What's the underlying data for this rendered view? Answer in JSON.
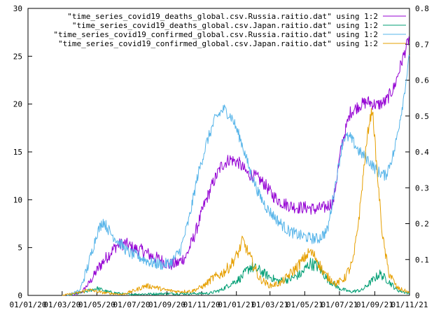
{
  "chart_data": {
    "type": "line",
    "title": "",
    "xlabel": "",
    "ylabel": "",
    "y2label": "",
    "grid": false,
    "legend_position": "top-right",
    "x_range": [
      "2020-01-01",
      "2021-11-01"
    ],
    "ylim": [
      0,
      30
    ],
    "y2lim": [
      0,
      0.8
    ],
    "x_ticks": [
      "01/01/20",
      "01/03/20",
      "01/05/20",
      "01/07/20",
      "01/09/20",
      "01/11/20",
      "01/01/21",
      "01/03/21",
      "01/05/21",
      "01/07/21",
      "01/09/21",
      "01/11/21"
    ],
    "y_ticks": [
      "0",
      "5",
      "10",
      "15",
      "20",
      "25",
      "30"
    ],
    "y2_ticks": [
      "0",
      "0.1",
      "0.2",
      "0.3",
      "0.4",
      "0.5",
      "0.6",
      "0.7",
      "0.8"
    ],
    "series": [
      {
        "name": "\"time_series_covid19_deaths_global.csv.Russia.raitio.dat\" using 1:2",
        "axis": "y2",
        "color": "#9400d3",
        "points": [
          [
            "2020-03-20",
            0
          ],
          [
            "2020-04-05",
            0.01
          ],
          [
            "2020-04-20",
            0.04
          ],
          [
            "2020-05-05",
            0.08
          ],
          [
            "2020-05-20",
            0.11
          ],
          [
            "2020-06-05",
            0.14
          ],
          [
            "2020-06-20",
            0.145
          ],
          [
            "2020-07-05",
            0.13
          ],
          [
            "2020-07-20",
            0.125
          ],
          [
            "2020-08-05",
            0.11
          ],
          [
            "2020-08-20",
            0.1
          ],
          [
            "2020-09-05",
            0.085
          ],
          [
            "2020-09-20",
            0.09
          ],
          [
            "2020-10-05",
            0.11
          ],
          [
            "2020-10-20",
            0.17
          ],
          [
            "2020-11-05",
            0.25
          ],
          [
            "2020-11-20",
            0.31
          ],
          [
            "2020-12-05",
            0.36
          ],
          [
            "2020-12-20",
            0.38
          ],
          [
            "2021-01-05",
            0.37
          ],
          [
            "2021-01-20",
            0.34
          ],
          [
            "2021-02-05",
            0.33
          ],
          [
            "2021-02-20",
            0.31
          ],
          [
            "2021-03-05",
            0.28
          ],
          [
            "2021-03-20",
            0.26
          ],
          [
            "2021-04-05",
            0.25
          ],
          [
            "2021-04-20",
            0.245
          ],
          [
            "2021-05-05",
            0.245
          ],
          [
            "2021-05-20",
            0.24
          ],
          [
            "2021-06-05",
            0.245
          ],
          [
            "2021-06-20",
            0.26
          ],
          [
            "2021-07-05",
            0.42
          ],
          [
            "2021-07-20",
            0.51
          ],
          [
            "2021-08-05",
            0.53
          ],
          [
            "2021-08-20",
            0.54
          ],
          [
            "2021-09-05",
            0.53
          ],
          [
            "2021-09-20",
            0.54
          ],
          [
            "2021-10-05",
            0.58
          ],
          [
            "2021-10-20",
            0.66
          ],
          [
            "2021-11-01",
            0.72
          ]
        ]
      },
      {
        "name": "\"time_series_covid19_deaths_global.csv.Japan.raitio.dat\" using 1:2",
        "axis": "y2",
        "color": "#009e73",
        "points": [
          [
            "2020-03-10",
            0
          ],
          [
            "2020-04-10",
            0.01
          ],
          [
            "2020-05-01",
            0.02
          ],
          [
            "2020-05-20",
            0.01
          ],
          [
            "2020-06-20",
            0.003
          ],
          [
            "2020-08-01",
            0.004
          ],
          [
            "2020-09-01",
            0.005
          ],
          [
            "2020-10-15",
            0.005
          ],
          [
            "2020-11-15",
            0.006
          ],
          [
            "2020-12-05",
            0.015
          ],
          [
            "2020-12-20",
            0.03
          ],
          [
            "2021-01-10",
            0.05
          ],
          [
            "2021-01-25",
            0.08
          ],
          [
            "2021-02-10",
            0.07
          ],
          [
            "2021-02-25",
            0.055
          ],
          [
            "2021-03-15",
            0.04
          ],
          [
            "2021-04-05",
            0.045
          ],
          [
            "2021-04-25",
            0.06
          ],
          [
            "2021-05-10",
            0.09
          ],
          [
            "2021-05-25",
            0.08
          ],
          [
            "2021-06-10",
            0.045
          ],
          [
            "2021-06-30",
            0.02
          ],
          [
            "2021-07-20",
            0.01
          ],
          [
            "2021-08-10",
            0.015
          ],
          [
            "2021-08-30",
            0.045
          ],
          [
            "2021-09-10",
            0.06
          ],
          [
            "2021-09-25",
            0.04
          ],
          [
            "2021-10-10",
            0.015
          ],
          [
            "2021-11-01",
            0.005
          ]
        ]
      },
      {
        "name": "\"time_series_covid19_confirmed_global.csv.Russia.raitio.dat\" using 1:2",
        "axis": "y",
        "color": "#56b4e9",
        "points": [
          [
            "2020-03-10",
            0
          ],
          [
            "2020-04-01",
            0.5
          ],
          [
            "2020-04-15",
            3
          ],
          [
            "2020-05-01",
            6.5
          ],
          [
            "2020-05-12",
            7.8
          ],
          [
            "2020-05-25",
            6.5
          ],
          [
            "2020-06-10",
            5.5
          ],
          [
            "2020-06-25",
            4.5
          ],
          [
            "2020-07-15",
            4.0
          ],
          [
            "2020-08-05",
            3.4
          ],
          [
            "2020-08-25",
            3.2
          ],
          [
            "2020-09-10",
            3.5
          ],
          [
            "2020-09-25",
            4.8
          ],
          [
            "2020-10-10",
            8.0
          ],
          [
            "2020-10-25",
            12.5
          ],
          [
            "2020-11-10",
            16.0
          ],
          [
            "2020-11-25",
            18.5
          ],
          [
            "2020-12-10",
            19.5
          ],
          [
            "2020-12-25",
            18.5
          ],
          [
            "2021-01-10",
            16.0
          ],
          [
            "2021-01-25",
            13.0
          ],
          [
            "2021-02-10",
            10.5
          ],
          [
            "2021-02-25",
            9.0
          ],
          [
            "2021-03-15",
            7.8
          ],
          [
            "2021-04-01",
            6.8
          ],
          [
            "2021-04-20",
            6.3
          ],
          [
            "2021-05-10",
            6.0
          ],
          [
            "2021-05-25",
            5.9
          ],
          [
            "2021-06-10",
            6.8
          ],
          [
            "2021-06-25",
            12.0
          ],
          [
            "2021-07-08",
            16.5
          ],
          [
            "2021-07-20",
            16.5
          ],
          [
            "2021-08-05",
            15.0
          ],
          [
            "2021-08-20",
            14.2
          ],
          [
            "2021-09-05",
            13.0
          ],
          [
            "2021-09-20",
            12.5
          ],
          [
            "2021-10-05",
            15.0
          ],
          [
            "2021-10-20",
            20.0
          ],
          [
            "2021-11-01",
            25.0
          ]
        ]
      },
      {
        "name": "\"time_series_covid19_confirmed_global.csv.Japan.raitio.dat\" using 1:2",
        "axis": "y",
        "color": "#e69f00",
        "points": [
          [
            "2020-03-01",
            0
          ],
          [
            "2020-04-01",
            0.3
          ],
          [
            "2020-04-15",
            0.6
          ],
          [
            "2020-05-10",
            0.3
          ],
          [
            "2020-06-15",
            0.1
          ],
          [
            "2020-07-10",
            0.6
          ],
          [
            "2020-07-25",
            1.0
          ],
          [
            "2020-08-10",
            0.9
          ],
          [
            "2020-08-25",
            0.6
          ],
          [
            "2020-09-20",
            0.4
          ],
          [
            "2020-10-15",
            0.45
          ],
          [
            "2020-11-05",
            1.0
          ],
          [
            "2020-11-20",
            1.8
          ],
          [
            "2020-12-05",
            2.2
          ],
          [
            "2020-12-20",
            3.0
          ],
          [
            "2021-01-05",
            4.5
          ],
          [
            "2021-01-12",
            5.8
          ],
          [
            "2021-01-25",
            4.0
          ],
          [
            "2021-02-10",
            1.8
          ],
          [
            "2021-03-01",
            1.0
          ],
          [
            "2021-03-20",
            1.3
          ],
          [
            "2021-04-10",
            2.5
          ],
          [
            "2021-04-25",
            3.5
          ],
          [
            "2021-05-10",
            4.6
          ],
          [
            "2021-05-20",
            4.0
          ],
          [
            "2021-06-05",
            2.2
          ],
          [
            "2021-06-25",
            1.2
          ],
          [
            "2021-07-10",
            1.8
          ],
          [
            "2021-07-25",
            3.5
          ],
          [
            "2021-08-05",
            8.5
          ],
          [
            "2021-08-15",
            14.5
          ],
          [
            "2021-08-22",
            18.0
          ],
          [
            "2021-08-28",
            19.5
          ],
          [
            "2021-09-05",
            13.0
          ],
          [
            "2021-09-15",
            6.0
          ],
          [
            "2021-09-25",
            2.5
          ],
          [
            "2021-10-10",
            0.8
          ],
          [
            "2021-11-01",
            0.3
          ]
        ]
      }
    ]
  }
}
